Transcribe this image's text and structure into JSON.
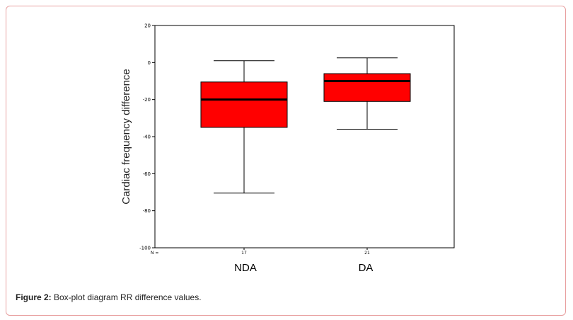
{
  "caption": {
    "label": "Figure 2:",
    "text": " Box-plot diagram RR difference values."
  },
  "chart_data": {
    "type": "box",
    "ylabel": "Cardiac frequency difference",
    "ylim": [
      -100,
      20
    ],
    "yticks": [
      20,
      0,
      -20,
      -40,
      -60,
      -80,
      -100
    ],
    "n_prefix": "N =",
    "box_color": "#ff0000",
    "categories": [
      "NDA",
      "DA"
    ],
    "n": [
      "17",
      "21"
    ],
    "boxes": [
      {
        "whisker_low": -70.5,
        "q1": -35,
        "median": -20,
        "q3": -10.5,
        "whisker_high": 1
      },
      {
        "whisker_low": -36,
        "q1": -21,
        "median": -10,
        "q3": -6,
        "whisker_high": 2.5
      }
    ]
  }
}
